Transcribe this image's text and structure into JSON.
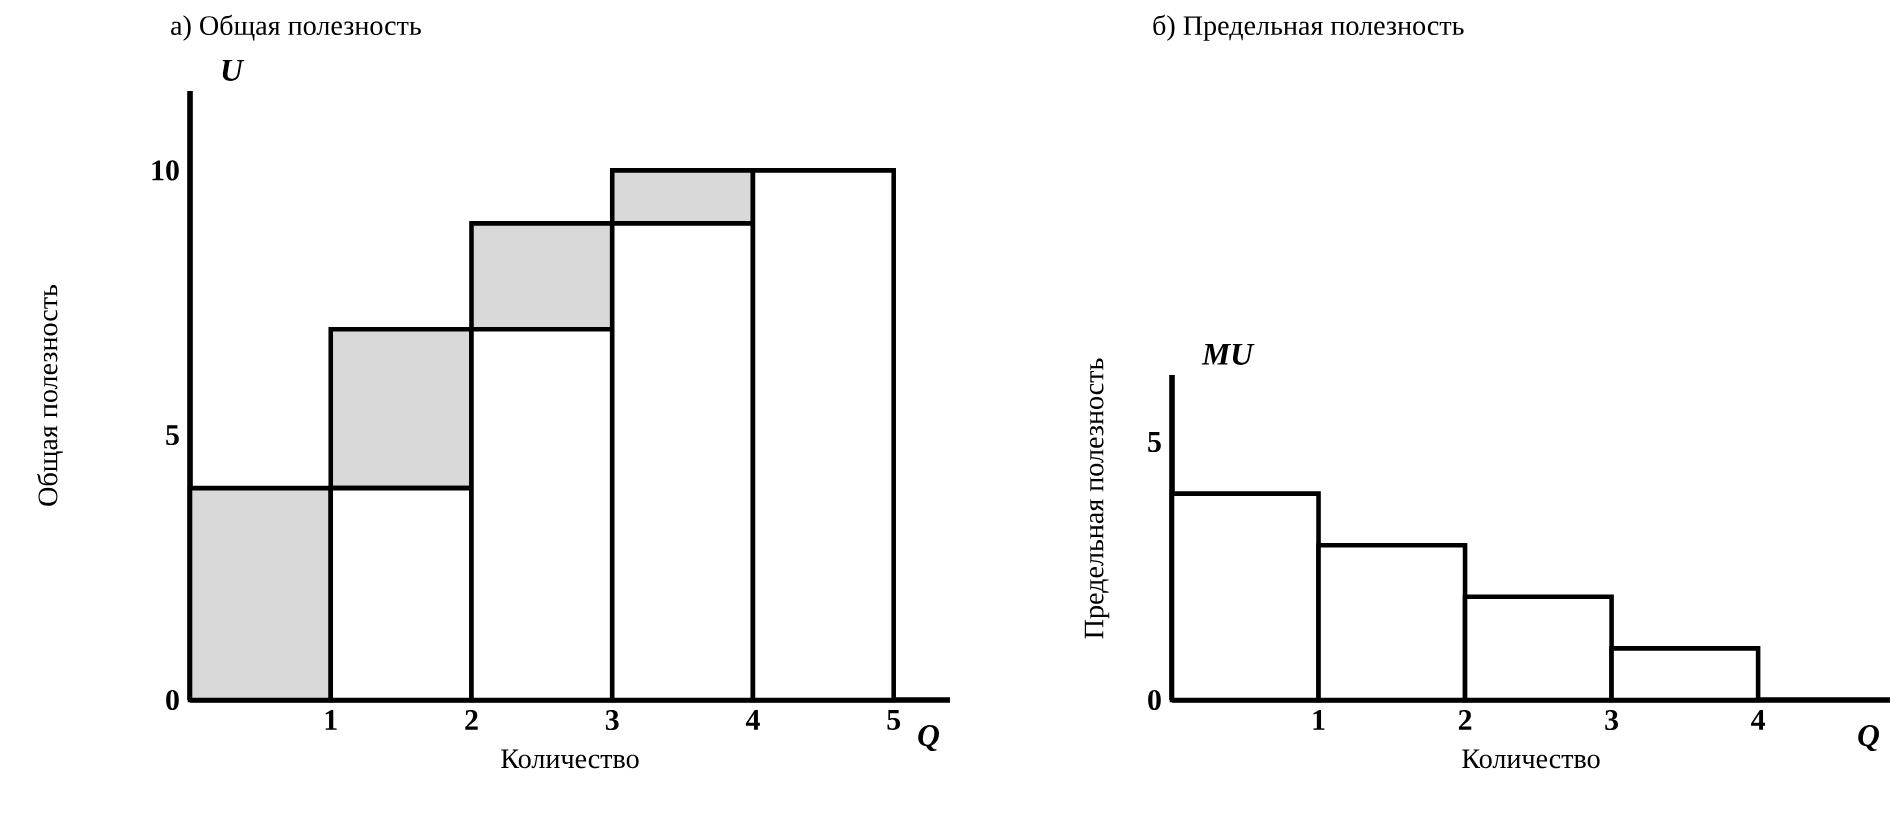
{
  "chart_data": [
    {
      "type": "bar",
      "stacked": true,
      "title": "а) Общая полезность",
      "xlabel": "Количество",
      "ylabel": "Общая полезность",
      "annotations": [
        "U",
        "Q"
      ],
      "x": [
        0.5,
        1.5,
        2.5,
        3.5,
        4.5
      ],
      "series": [
        {
          "color": "#ffffff",
          "values": [
            0,
            4,
            7,
            9,
            10
          ]
        },
        {
          "color": "#d9d9d9",
          "values": [
            4,
            3,
            2,
            1,
            0
          ]
        }
      ],
      "xlim": [
        0,
        5.4
      ],
      "ylim": [
        0,
        11.5
      ],
      "xticks": [
        1,
        2,
        3,
        4,
        5
      ],
      "yticks": [
        0,
        5,
        10
      ]
    },
    {
      "type": "bar",
      "title": "б) Предельная полезность",
      "xlabel": "Количество",
      "ylabel": "Предельная полезность",
      "annotations": [
        "MU",
        "Q"
      ],
      "x": [
        0.5,
        1.5,
        2.5,
        3.5
      ],
      "values": [
        4,
        3,
        2,
        1
      ],
      "color": "#ffffff",
      "xlim": [
        0,
        4.9
      ],
      "ylim": [
        0,
        6.3
      ],
      "xticks": [
        1,
        2,
        3,
        4
      ],
      "yticks": [
        0,
        5
      ]
    }
  ]
}
